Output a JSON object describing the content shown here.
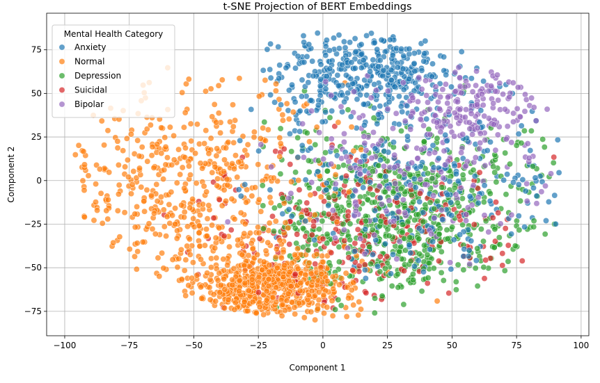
{
  "chart_data": {
    "type": "scatter",
    "title": "t-SNE Projection of BERT Embeddings",
    "xlabel": "Component 1",
    "ylabel": "Component 2",
    "xlim": [
      -107,
      103
    ],
    "ylim": [
      -89,
      96
    ],
    "xticks": [
      -100,
      -75,
      -50,
      -25,
      0,
      25,
      50,
      75,
      100
    ],
    "yticks": [
      -75,
      -50,
      -25,
      0,
      25,
      50,
      75
    ],
    "xtick_labels": [
      "−100",
      "−75",
      "−50",
      "−25",
      "0",
      "25",
      "50",
      "75",
      "100"
    ],
    "ytick_labels": [
      "−75",
      "−50",
      "−25",
      "0",
      "25",
      "50",
      "75"
    ],
    "grid": true,
    "legend": {
      "title": "Mental Health Category",
      "placement": "top-left",
      "entries": [
        "Anxiety",
        "Normal",
        "Depression",
        "Suicidal",
        "Bipolar"
      ]
    },
    "series": [
      {
        "name": "Anxiety",
        "color": "#1f77b4",
        "approx_regions": [
          {
            "cx": 15,
            "cy": 62,
            "sx": 18,
            "sy": 12
          },
          {
            "cx": 40,
            "cy": 0,
            "sx": 30,
            "sy": 30
          }
        ],
        "extent_x": [
          -40,
          92
        ],
        "extent_y": [
          -58,
          88
        ]
      },
      {
        "name": "Normal",
        "color": "#ff7f0e",
        "approx_regions": [
          {
            "cx": -55,
            "cy": -5,
            "sx": 28,
            "sy": 32
          },
          {
            "cx": -20,
            "cy": -60,
            "sx": 15,
            "sy": 10
          }
        ],
        "extent_x": [
          -100,
          50
        ],
        "extent_y": [
          -80,
          65
        ]
      },
      {
        "name": "Depression",
        "color": "#2ca02c",
        "approx_regions": [
          {
            "cx": 30,
            "cy": -20,
            "sx": 25,
            "sy": 25
          }
        ],
        "extent_x": [
          -25,
          90
        ],
        "extent_y": [
          -79,
          55
        ]
      },
      {
        "name": "Suicidal",
        "color": "#d62728",
        "approx_regions": [
          {
            "cx": 15,
            "cy": -30,
            "sx": 30,
            "sy": 25
          }
        ],
        "extent_x": [
          -70,
          90
        ],
        "extent_y": [
          -80,
          35
        ]
      },
      {
        "name": "Bipolar",
        "color": "#9467bd",
        "approx_regions": [
          {
            "cx": 58,
            "cy": 40,
            "sx": 12,
            "sy": 12
          },
          {
            "cx": 30,
            "cy": 5,
            "sx": 25,
            "sy": 25
          }
        ],
        "extent_x": [
          -40,
          90
        ],
        "extent_y": [
          -50,
          65
        ]
      }
    ]
  }
}
